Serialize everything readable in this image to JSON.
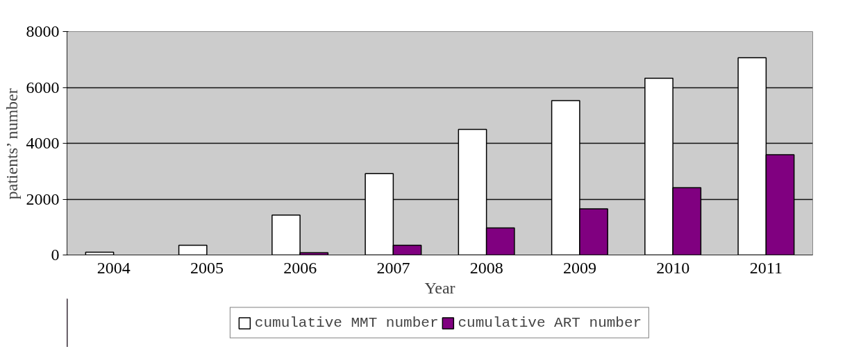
{
  "chart_data": {
    "type": "bar",
    "xlabel": "Year",
    "ylabel": "patients’ number",
    "categories": [
      "2004",
      "2005",
      "2006",
      "2007",
      "2008",
      "2009",
      "2010",
      "2011"
    ],
    "series": [
      {
        "name": "cumulative MMT number",
        "color": "#ffffff",
        "values": [
          100,
          350,
          1430,
          2910,
          4500,
          5530,
          6330,
          7060
        ]
      },
      {
        "name": "cumulative ART number",
        "color": "#800080",
        "values": [
          null,
          null,
          80,
          350,
          970,
          1650,
          2410,
          3590
        ]
      }
    ],
    "ylim": [
      0,
      8000
    ],
    "yticks": [
      0,
      2000,
      4000,
      6000,
      8000
    ],
    "grid": "y",
    "legend": "bottom"
  }
}
